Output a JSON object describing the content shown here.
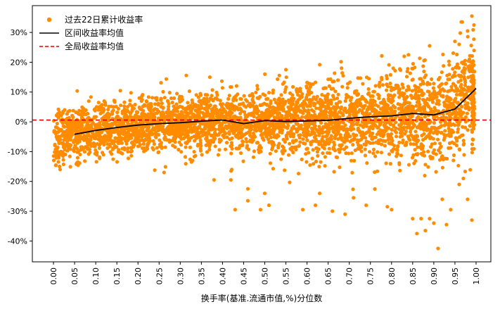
{
  "chart_data": {
    "type": "scatter",
    "title": "",
    "xlabel": "换手率(基准.流通市值,%)分位数",
    "ylabel": "",
    "xlim": [
      -0.05,
      1.035
    ],
    "ylim": [
      -47,
      39
    ],
    "x_ticks": [
      0.0,
      0.05,
      0.1,
      0.15,
      0.2,
      0.25,
      0.3,
      0.35,
      0.4,
      0.45,
      0.5,
      0.55,
      0.6,
      0.65,
      0.7,
      0.75,
      0.8,
      0.85,
      0.9,
      0.95,
      1.0
    ],
    "x_tick_labels": [
      "0.00",
      "0.05",
      "0.10",
      "0.15",
      "0.20",
      "0.25",
      "0.30",
      "0.35",
      "0.40",
      "0.45",
      "0.50",
      "0.55",
      "0.60",
      "0.65",
      "0.70",
      "0.75",
      "0.80",
      "0.85",
      "0.90",
      "0.95",
      "1.00"
    ],
    "y_ticks": [
      -40,
      -30,
      -20,
      -10,
      0,
      10,
      20,
      30
    ],
    "y_tick_labels": [
      "-40%",
      "-30%",
      "-20%",
      "-10%",
      "0%",
      "10%",
      "20%",
      "30%"
    ],
    "grid": false,
    "legend_position": "top-left",
    "series": [
      {
        "name": "过去22日累计收益率",
        "kind": "scatter",
        "color": "#ff8c00",
        "note": "dense cloud of roughly 4000 points; spread widens toward high quantiles",
        "trend": {
          "x": [
            0.0,
            0.05,
            0.1,
            0.15,
            0.2,
            0.25,
            0.3,
            0.35,
            0.4,
            0.45,
            0.5,
            0.55,
            0.6,
            0.65,
            0.7,
            0.75,
            0.8,
            0.85,
            0.9,
            0.95,
            1.0
          ],
          "spread": [
            4.5,
            4.2,
            4.2,
            4.3,
            4.5,
            4.5,
            4.6,
            4.8,
            5.0,
            5.2,
            5.4,
            5.6,
            5.8,
            6.0,
            6.2,
            6.5,
            7.0,
            7.2,
            7.5,
            8.5,
            9.5
          ]
        },
        "outliers": [
          [
            0.37,
            15
          ],
          [
            0.38,
            -19.5
          ],
          [
            0.42,
            -19.5
          ],
          [
            0.43,
            -29.5
          ],
          [
            0.46,
            -22.5
          ],
          [
            0.46,
            -26.5
          ],
          [
            0.5,
            -24
          ],
          [
            0.49,
            -29.5
          ],
          [
            0.51,
            -28
          ],
          [
            0.55,
            17.5
          ],
          [
            0.59,
            -29.5
          ],
          [
            0.62,
            -28
          ],
          [
            0.63,
            -24
          ],
          [
            0.66,
            -30
          ],
          [
            0.69,
            -31
          ],
          [
            0.71,
            -25.5
          ],
          [
            0.74,
            -28
          ],
          [
            0.79,
            -28.5
          ],
          [
            0.8,
            -29.5
          ],
          [
            0.83,
            22
          ],
          [
            0.84,
            22.5
          ],
          [
            0.85,
            -32.5
          ],
          [
            0.86,
            -37.5
          ],
          [
            0.87,
            -32.5
          ],
          [
            0.88,
            -36.5
          ],
          [
            0.89,
            25.5
          ],
          [
            0.89,
            -32.5
          ],
          [
            0.9,
            -34
          ],
          [
            0.91,
            -42.5
          ],
          [
            0.92,
            -26
          ],
          [
            0.93,
            -34.5
          ],
          [
            0.94,
            -29.5
          ],
          [
            0.95,
            27
          ],
          [
            0.96,
            -21
          ],
          [
            0.97,
            -19
          ],
          [
            0.98,
            -26
          ],
          [
            0.99,
            -33
          ],
          [
            0.99,
            35.5
          ],
          [
            0.995,
            32.5
          ],
          [
            0.98,
            30.5
          ],
          [
            0.96,
            26
          ]
        ]
      },
      {
        "name": "区间收益率均值",
        "kind": "line",
        "color": "#000000",
        "x": [
          0.05,
          0.1,
          0.15,
          0.2,
          0.25,
          0.3,
          0.35,
          0.4,
          0.45,
          0.5,
          0.55,
          0.6,
          0.65,
          0.7,
          0.75,
          0.8,
          0.85,
          0.9,
          0.95,
          1.0
        ],
        "y": [
          -4.2,
          -2.9,
          -1.9,
          -1.1,
          -0.6,
          -0.3,
          0.2,
          0.6,
          -0.6,
          0.4,
          0.1,
          0.3,
          0.5,
          1.2,
          1.7,
          2.0,
          2.8,
          2.3,
          4.3,
          11.2
        ]
      },
      {
        "name": "全局收益率均值",
        "kind": "hline",
        "color": "#e00000",
        "y": 0.6
      }
    ]
  }
}
